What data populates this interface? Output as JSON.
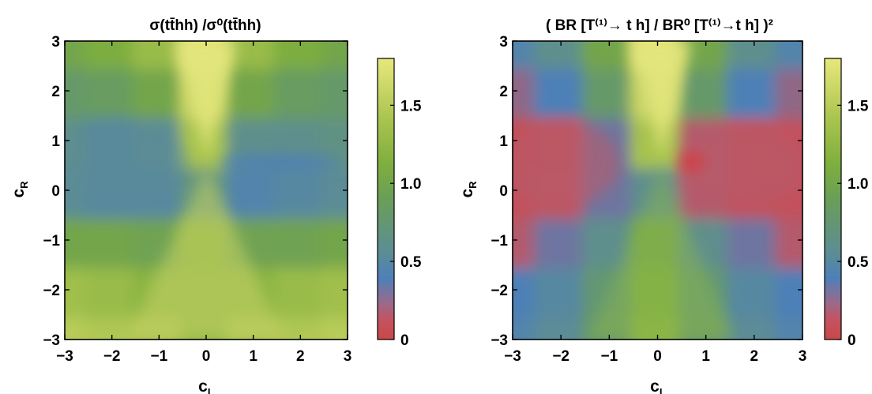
{
  "chart_data": [
    {
      "type": "heatmap",
      "title": "σ(tt̄hh) /σ⁰(tt̄hh)",
      "xlabel": "c_L",
      "ylabel": "c_R",
      "xlim": [
        -3,
        3
      ],
      "ylim": [
        -3,
        3
      ],
      "x_ticks": [
        "−3",
        "−2",
        "−1",
        "0",
        "1",
        "2",
        "3"
      ],
      "y_ticks": [
        "−3",
        "−2",
        "−1",
        "0",
        "1",
        "2",
        "3"
      ],
      "colorbar": {
        "range": [
          0,
          1.8
        ],
        "ticks": [
          0,
          0.5,
          1.0,
          1.5
        ],
        "tick_labels": [
          "0",
          "0.5",
          "1.0",
          "1.5"
        ]
      },
      "x": [
        -3,
        -2,
        -1,
        0,
        1,
        2,
        3
      ],
      "y": [
        -3,
        -2,
        -1,
        0,
        1,
        2,
        3
      ],
      "z": [
        [
          1.5,
          1.45,
          1.4,
          1.2,
          1.4,
          1.45,
          1.5
        ],
        [
          1.35,
          1.3,
          1.2,
          1.2,
          1.2,
          1.3,
          1.35
        ],
        [
          1.0,
          1.0,
          0.95,
          1.15,
          0.95,
          0.95,
          1.0
        ],
        [
          0.55,
          0.5,
          0.5,
          0.7,
          0.45,
          0.5,
          0.55
        ],
        [
          0.6,
          0.5,
          0.55,
          1.4,
          0.6,
          0.6,
          0.65
        ],
        [
          0.8,
          0.85,
          1.0,
          1.6,
          1.0,
          0.85,
          0.8
        ],
        [
          1.0,
          1.1,
          1.3,
          1.75,
          1.3,
          1.1,
          1.0
        ]
      ]
    },
    {
      "type": "heatmap",
      "title": "( BR [T⁽¹⁾→ t h] / BR⁰ [T⁽¹⁾→t h] )²",
      "xlabel": "c_L",
      "ylabel": "c_R",
      "xlim": [
        -3,
        3
      ],
      "ylim": [
        -3,
        3
      ],
      "x_ticks": [
        "−3",
        "−2",
        "−1",
        "0",
        "1",
        "2",
        "3"
      ],
      "y_ticks": [
        "−3",
        "−2",
        "−1",
        "0",
        "1",
        "2",
        "3"
      ],
      "colorbar": {
        "range": [
          0,
          1.8
        ],
        "ticks": [
          0,
          0.5,
          1.0,
          1.5
        ],
        "tick_labels": [
          "0",
          "0.5",
          "1.0",
          "1.5"
        ]
      },
      "x": [
        -3,
        -2,
        -1,
        0,
        1,
        2,
        3
      ],
      "y": [
        -3,
        -2,
        -1,
        0,
        1,
        2,
        3
      ],
      "z": [
        [
          0.45,
          0.55,
          0.8,
          1.2,
          0.8,
          0.55,
          0.45
        ],
        [
          0.4,
          0.5,
          0.75,
          1.1,
          0.75,
          0.5,
          0.4
        ],
        [
          0.25,
          0.35,
          0.6,
          1.0,
          0.6,
          0.35,
          0.25
        ],
        [
          0.15,
          0.2,
          0.35,
          0.6,
          0.25,
          0.15,
          0.15
        ],
        [
          0.1,
          0.15,
          0.35,
          1.4,
          0.25,
          0.15,
          0.15
        ],
        [
          0.3,
          0.4,
          0.8,
          1.6,
          0.8,
          0.4,
          0.3
        ],
        [
          0.45,
          0.6,
          1.0,
          1.75,
          1.0,
          0.6,
          0.45
        ]
      ]
    }
  ],
  "colors": {
    "scale": [
      "#c8484a",
      "#b85a70",
      "#4e80b8",
      "#5b8f88",
      "#78aa3e",
      "#a8c24c",
      "#e6e77a"
    ],
    "frame": "#000000"
  }
}
